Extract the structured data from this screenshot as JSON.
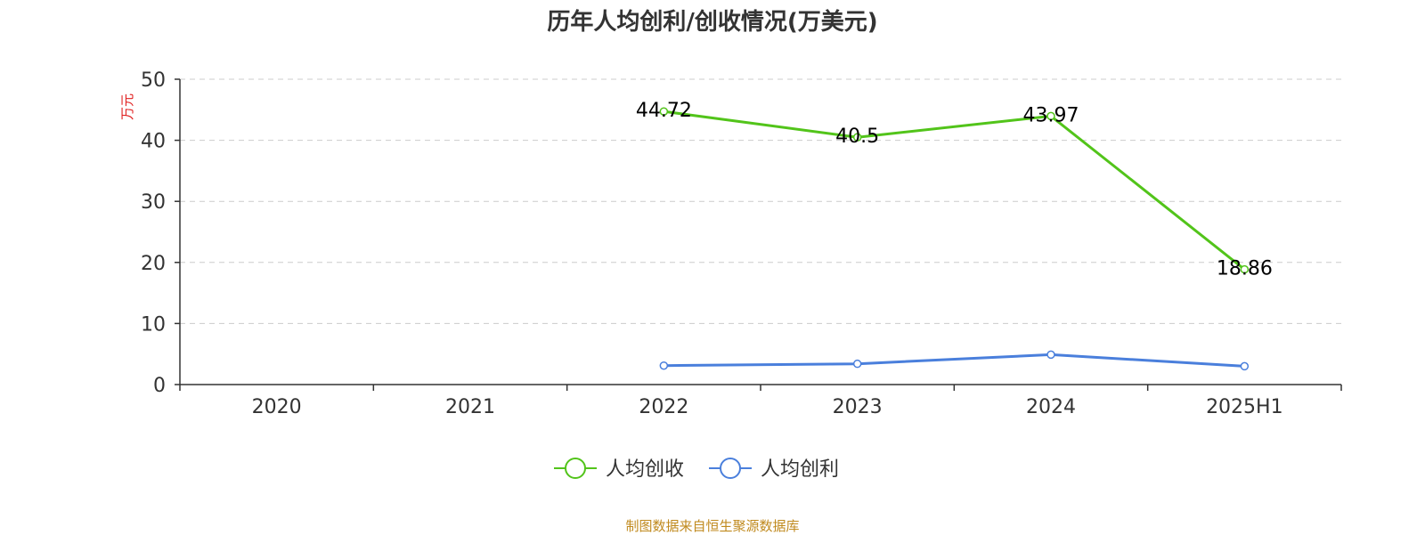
{
  "chart_data": {
    "type": "line",
    "title": "历年人均创利/创收情况(万美元)",
    "ylabel": "万元",
    "categories": [
      "2020",
      "2021",
      "2022",
      "2023",
      "2024",
      "2025H1"
    ],
    "ylim": [
      0,
      50
    ],
    "yticks": [
      0,
      10,
      20,
      30,
      40,
      50
    ],
    "grid": true,
    "legend_position": "bottom",
    "series": [
      {
        "name": "人均创收",
        "color": "#52c41a",
        "values": [
          null,
          null,
          44.72,
          40.5,
          43.97,
          18.86
        ],
        "labels": [
          "",
          "",
          "44.72",
          "40.5",
          "43.97",
          "18.86"
        ]
      },
      {
        "name": "人均创利",
        "color": "#4a7fdc",
        "values": [
          null,
          null,
          3.1,
          3.4,
          4.9,
          3.0
        ],
        "labels": []
      }
    ]
  },
  "source": "制图数据来自恒生聚源数据库"
}
